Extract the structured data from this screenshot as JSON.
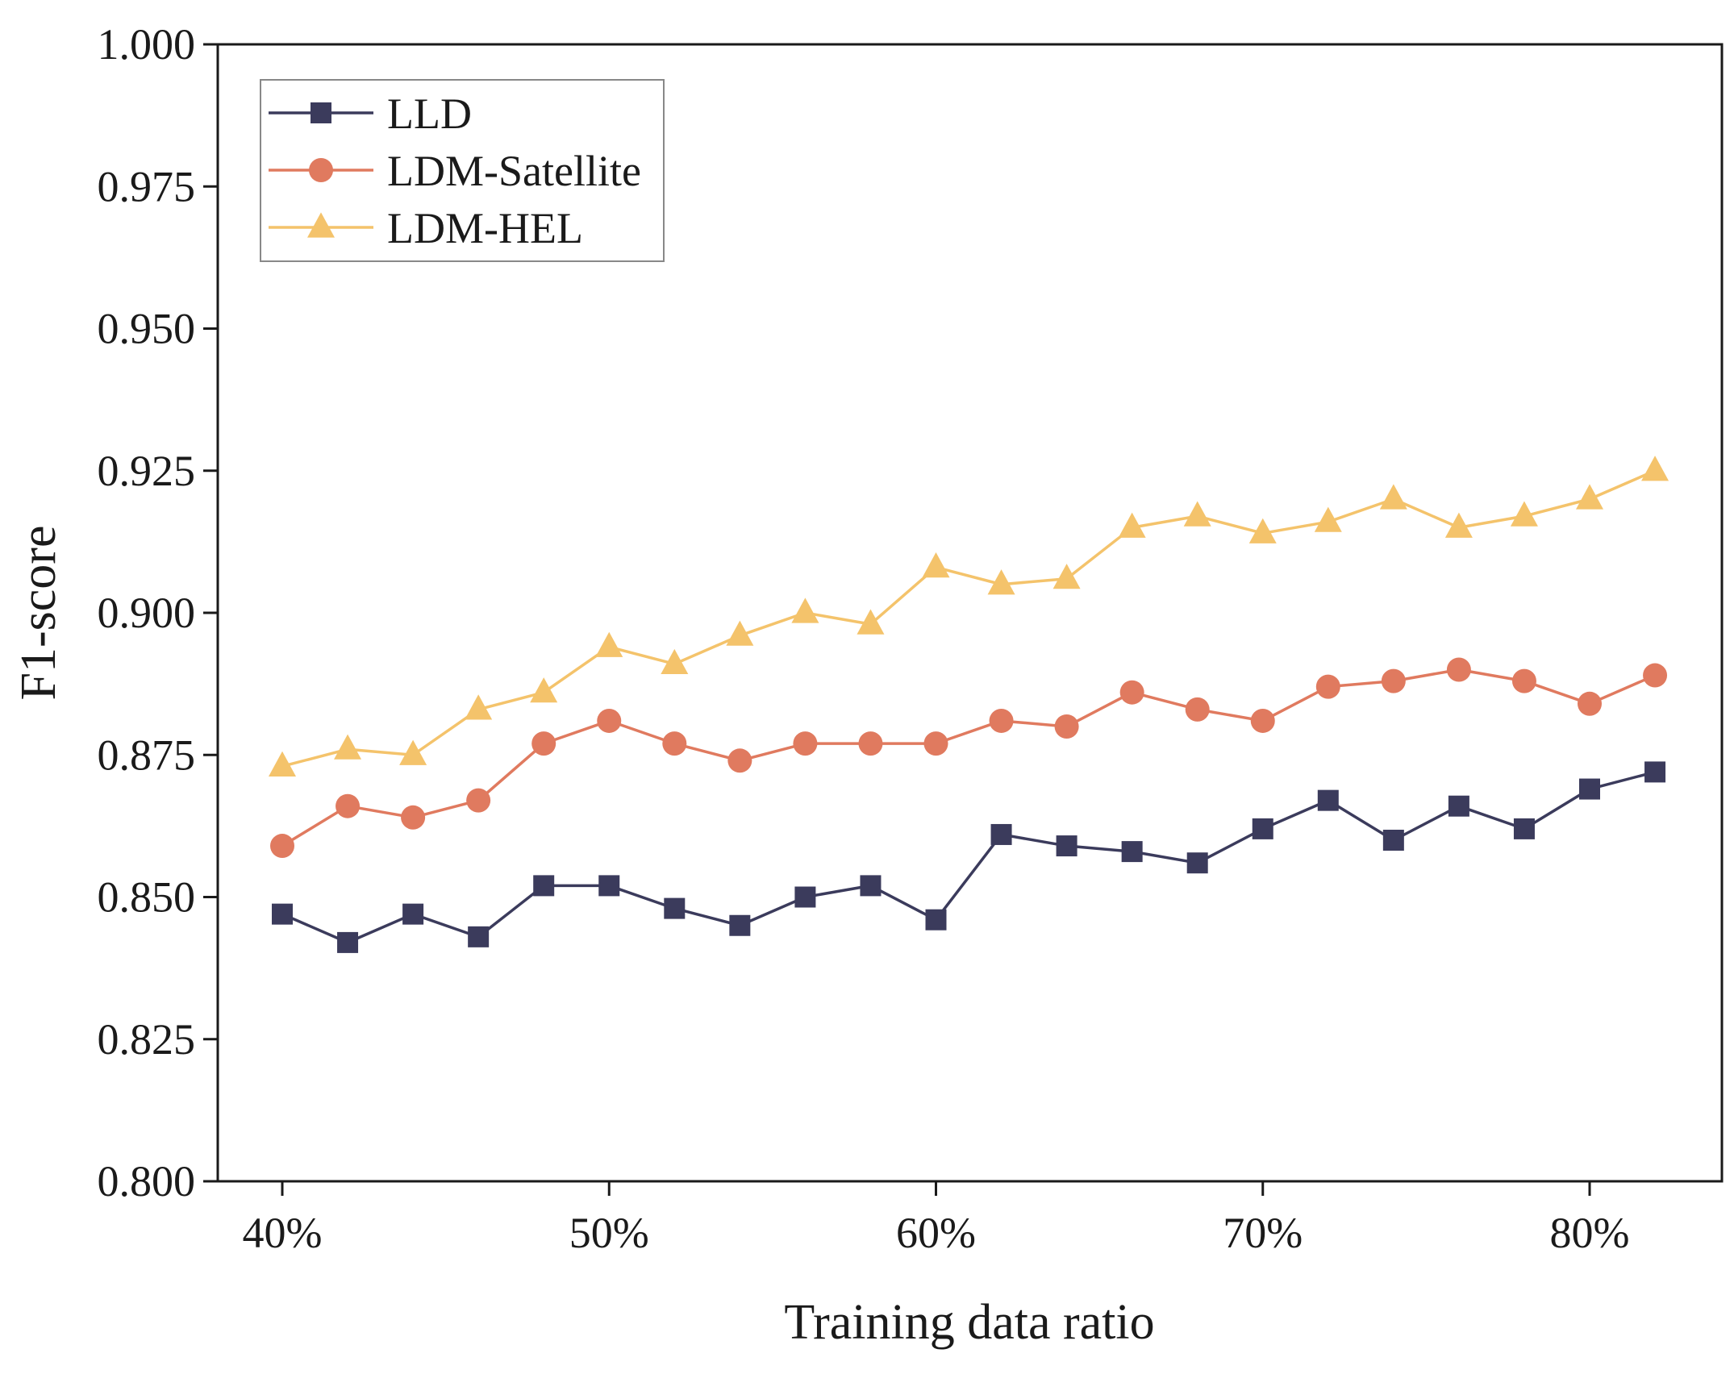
{
  "chart_data": {
    "type": "line",
    "title": "",
    "xlabel": "Training data ratio",
    "ylabel": "F1-score",
    "x": [
      40,
      42,
      44,
      46,
      48,
      50,
      52,
      54,
      56,
      58,
      60,
      62,
      64,
      66,
      68,
      70,
      72,
      74,
      76,
      78,
      80,
      82
    ],
    "xlim": [
      36,
      85
    ],
    "ylim": [
      0.8,
      1.0
    ],
    "xticks": [
      40,
      50,
      60,
      70,
      80
    ],
    "xtick_labels": [
      "40%",
      "50%",
      "60%",
      "70%",
      "80%"
    ],
    "yticks": [
      0.8,
      0.825,
      0.85,
      0.875,
      0.9,
      0.925,
      0.95,
      0.975,
      1.0
    ],
    "ytick_labels": [
      "0.800",
      "0.825",
      "0.850",
      "0.875",
      "0.900",
      "0.925",
      "0.950",
      "0.975",
      "1.000"
    ],
    "grid": false,
    "legend_position": "top-left",
    "series": [
      {
        "name": "LLD",
        "marker": "square",
        "color": "#3b3b5c",
        "values": [
          0.847,
          0.842,
          0.847,
          0.843,
          0.852,
          0.852,
          0.848,
          0.845,
          0.85,
          0.852,
          0.846,
          0.861,
          0.859,
          0.858,
          0.856,
          0.862,
          0.867,
          0.86,
          0.866,
          0.862,
          0.869,
          0.872
        ]
      },
      {
        "name": "LDM-Satellite",
        "marker": "circle",
        "color": "#e07a5f",
        "values": [
          0.859,
          0.866,
          0.864,
          0.867,
          0.877,
          0.881,
          0.877,
          0.874,
          0.877,
          0.877,
          0.877,
          0.881,
          0.88,
          0.886,
          0.883,
          0.881,
          0.887,
          0.888,
          0.89,
          0.888,
          0.884,
          0.889
        ]
      },
      {
        "name": "LDM-HEL",
        "marker": "triangle",
        "color": "#f4c36b",
        "values": [
          0.873,
          0.876,
          0.875,
          0.883,
          0.886,
          0.894,
          0.891,
          0.896,
          0.9,
          0.898,
          0.908,
          0.905,
          0.906,
          0.915,
          0.917,
          0.914,
          0.916,
          0.92,
          0.915,
          0.917,
          0.92,
          0.925
        ]
      }
    ]
  }
}
